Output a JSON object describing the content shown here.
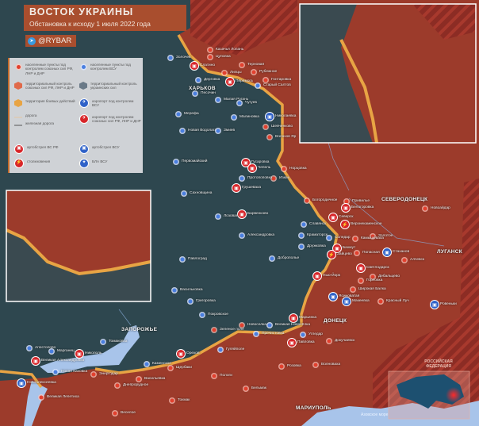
{
  "header": {
    "title": "ВОСТОК УКРАИНЫ",
    "subtitle": "Обстановка к исходу 1 июля 2022 года",
    "handle": "@RYBAR",
    "handle_icon": "telegram-icon"
  },
  "legend": {
    "items": [
      {
        "label": "населенные пункты под контролем союзных сил РФ, ЛНР и ДНР",
        "icon": "red-settlement-icon"
      },
      {
        "label": "населенные пункты под контролем ВСУ",
        "icon": "blue-settlement-icon"
      },
      {
        "label": "территориальный контроль союзных сил РФ, ЛНР и ДНР",
        "icon": "red-hexagon-icon"
      },
      {
        "label": "территориальный контроль украинских сил",
        "icon": "grey-hexagon-icon"
      },
      {
        "label": "территория боевых действий",
        "icon": "hatched-hexagon-icon"
      },
      {
        "label": "аэропорт под контролем ВСУ",
        "icon": "blue-airport-icon"
      },
      {
        "label": "дорога",
        "icon": "road-icon"
      },
      {
        "label": "железная дорога",
        "icon": "railway-icon"
      },
      {
        "label": "аэропорт под контролем союзных сил РФ, ЛНР и ДНР",
        "icon": "red-airport-icon"
      },
      {
        "label": "артобстрел ВС РФ",
        "icon": "ru-artillery-icon"
      },
      {
        "label": "артобстрел ВСУ",
        "icon": "ua-artillery-icon"
      },
      {
        "label": "столкновения",
        "icon": "clash-icon"
      },
      {
        "label": "БЛА ВСУ",
        "icon": "drone-icon"
      }
    ]
  },
  "colors": {
    "ru_control": "#9c3b2b",
    "ua_control": "#2e474f",
    "front": "#e8a444",
    "sea": "#a8c4ea",
    "russia": "#8c2c24",
    "title_bar": "#be5028"
  },
  "map": {
    "major_cities": [
      "ХАРЬКОВ",
      "СЕВЕРОДОНЕЦК",
      "ЛУГАНСК",
      "ДОНЕЦК",
      "МАРИУПОЛЬ",
      "ЗАПОРОЖЬЕ"
    ],
    "cities": [
      {
        "name": "Золочев",
        "side": "ua"
      },
      {
        "name": "Казачья Лопань",
        "side": "ru"
      },
      {
        "name": "Цуповка",
        "side": "ru"
      },
      {
        "name": "Слатино",
        "side": "ru-art"
      },
      {
        "name": "Липцы",
        "side": "ru"
      },
      {
        "name": "Терновая",
        "side": "ru"
      },
      {
        "name": "Рубежное",
        "side": "ru"
      },
      {
        "name": "Гонтаровка",
        "side": "ru"
      },
      {
        "name": "Дерговка",
        "side": "ua"
      },
      {
        "name": "Песочин",
        "side": "ua"
      },
      {
        "name": "Перемога",
        "side": "ru-art"
      },
      {
        "name": "Старый Салтов",
        "side": "ua"
      },
      {
        "name": "Малая Рогань",
        "side": "ua"
      },
      {
        "name": "Чугуев",
        "side": "ua"
      },
      {
        "name": "Мерефа",
        "side": "ua"
      },
      {
        "name": "Малиновка",
        "side": "ua"
      },
      {
        "name": "Николаевка",
        "side": "ua-art"
      },
      {
        "name": "Шевченково",
        "side": "ru"
      },
      {
        "name": "Новая Водолага",
        "side": "ua"
      },
      {
        "name": "Змиев",
        "side": "ua"
      },
      {
        "name": "Волохов Яр",
        "side": "ru"
      },
      {
        "name": "Первомайский",
        "side": "ua"
      },
      {
        "name": "Гусаровка",
        "side": "ru-art"
      },
      {
        "name": "Чепель",
        "side": "ru-art"
      },
      {
        "name": "Норцовка",
        "side": "ru"
      },
      {
        "name": "Изюм",
        "side": "ru"
      },
      {
        "name": "Протопоповка",
        "side": "ua"
      },
      {
        "name": "Грушеваха",
        "side": "ru-art"
      },
      {
        "name": "Сахновщина",
        "side": "ua"
      },
      {
        "name": "Барвенково",
        "side": "ru-art"
      },
      {
        "name": "Лозовая",
        "side": "ua"
      },
      {
        "name": "Богородичное",
        "side": "ru"
      },
      {
        "name": "Славянск",
        "side": "ua"
      },
      {
        "name": "Александровка",
        "side": "ua"
      },
      {
        "name": "Краматорск",
        "side": "ua"
      },
      {
        "name": "Дружковка",
        "side": "ua"
      },
      {
        "name": "Доброполье",
        "side": "ua"
      },
      {
        "name": "Павлоград",
        "side": "ua"
      },
      {
        "name": "Привилье",
        "side": "ru"
      },
      {
        "name": "Белогоровка",
        "side": "ru-art"
      },
      {
        "name": "Северск",
        "side": "ru-art"
      },
      {
        "name": "Верхнекаменское",
        "side": "clash"
      },
      {
        "name": "Соледар",
        "side": "ua"
      },
      {
        "name": "Бахмут",
        "side": "ru-art"
      },
      {
        "name": "Зайцево",
        "side": "clash"
      },
      {
        "name": "Золотое",
        "side": "ru"
      },
      {
        "name": "Камышеваха",
        "side": "ru"
      },
      {
        "name": "Попасная",
        "side": "ru"
      },
      {
        "name": "Стаханов",
        "side": "ua-art"
      },
      {
        "name": "Алчевск",
        "side": "ru"
      },
      {
        "name": "Новоайдар",
        "side": "ru"
      },
      {
        "name": "Светлодарск",
        "side": "ru-art"
      },
      {
        "name": "Дебальцево",
        "side": "ru"
      },
      {
        "name": "Горловка",
        "side": "ru"
      },
      {
        "name": "Нью-Йорк",
        "side": "ru-art"
      },
      {
        "name": "Широкая Балка",
        "side": "ru"
      },
      {
        "name": "Красный Луч",
        "side": "ru"
      },
      {
        "name": "Ровеньки",
        "side": "ua-art"
      },
      {
        "name": "Макеевка",
        "side": "ua-art"
      },
      {
        "name": "Ясиноватая",
        "side": "ua-art"
      },
      {
        "name": "Васильковка",
        "side": "ua"
      },
      {
        "name": "Григоровка",
        "side": "ua"
      },
      {
        "name": "Покровское",
        "side": "ua"
      },
      {
        "name": "Марьинка",
        "side": "ru-art"
      },
      {
        "name": "Новоселка",
        "side": "ru"
      },
      {
        "name": "Великая Новосёлка",
        "side": "ua"
      },
      {
        "name": "Угледар",
        "side": "ua"
      },
      {
        "name": "Павловка",
        "side": "ru-art"
      },
      {
        "name": "Пречистовка",
        "side": "ua"
      },
      {
        "name": "Докучаевск",
        "side": "ru"
      },
      {
        "name": "Зеленое поле",
        "side": "ru"
      },
      {
        "name": "Гуляйполе",
        "side": "ua"
      },
      {
        "name": "Орехов",
        "side": "ru-art"
      },
      {
        "name": "Пологи",
        "side": "ru"
      },
      {
        "name": "Волноваха",
        "side": "ru"
      },
      {
        "name": "Розовка",
        "side": "ru"
      },
      {
        "name": "Бельмак",
        "side": "ru"
      },
      {
        "name": "Токмак",
        "side": "ru"
      },
      {
        "name": "Каменское",
        "side": "ua"
      },
      {
        "name": "Щербаки",
        "side": "ru"
      },
      {
        "name": "Васильевка",
        "side": "ru"
      },
      {
        "name": "Апостолово",
        "side": "ua"
      },
      {
        "name": "Марганец",
        "side": "ua"
      },
      {
        "name": "Томаковка",
        "side": "ua"
      },
      {
        "name": "Великая Александровка",
        "side": "ru-art"
      },
      {
        "name": "Никополь",
        "side": "ru-art"
      },
      {
        "name": "Новая Каховка",
        "side": "ua"
      },
      {
        "name": "Новоалексеевка",
        "side": "ua-art"
      },
      {
        "name": "Энергодар",
        "side": "ru"
      },
      {
        "name": "Днепрорудное",
        "side": "ru"
      },
      {
        "name": "Великая Лепетиха",
        "side": "ru"
      },
      {
        "name": "Веселое",
        "side": "ru"
      }
    ],
    "overview": {
      "russia_label": "РОССИЙСКАЯ ФЕДЕРАЦИЯ",
      "sea_label": "Азовское море"
    }
  }
}
